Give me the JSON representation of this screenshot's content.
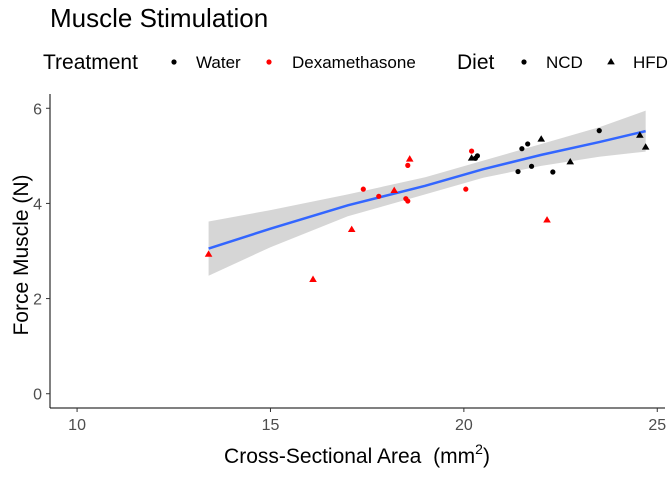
{
  "chart_data": {
    "type": "scatter",
    "title": "Muscle Stimulation",
    "xlabel": "Cross-Sectional Area",
    "xlabel_unit": "mm",
    "xlabel_unit_exponent": "2",
    "ylabel": "Force Muscle (N)",
    "xlim": [
      9.3,
      25.2
    ],
    "ylim": [
      -0.3,
      6.3
    ],
    "x_ticks": [
      10,
      15,
      20,
      25
    ],
    "y_ticks": [
      0,
      2,
      4,
      6
    ],
    "grid": false,
    "legend_position": "top",
    "legends": [
      {
        "title": "Treatment",
        "entries": [
          {
            "label": "Water",
            "color": "#000000",
            "shape": "circle"
          },
          {
            "label": "Dexamethasone",
            "color": "#ff0000",
            "shape": "circle"
          }
        ]
      },
      {
        "title": "Diet",
        "entries": [
          {
            "label": "NCD",
            "color": "#000000",
            "shape": "circle"
          },
          {
            "label": "HFD",
            "color": "#000000",
            "shape": "triangle"
          }
        ]
      }
    ],
    "colors": {
      "Water": "#000000",
      "Dexamethasone": "#ff0000",
      "fit_line": "#3366ff",
      "confidence_band": "#cccccc"
    },
    "points": [
      {
        "x": 13.4,
        "y": 2.93,
        "treatment": "Dexamethasone",
        "diet": "HFD"
      },
      {
        "x": 16.1,
        "y": 2.4,
        "treatment": "Dexamethasone",
        "diet": "HFD"
      },
      {
        "x": 17.1,
        "y": 3.45,
        "treatment": "Dexamethasone",
        "diet": "HFD"
      },
      {
        "x": 17.4,
        "y": 4.3,
        "treatment": "Dexamethasone",
        "diet": "NCD"
      },
      {
        "x": 17.8,
        "y": 4.15,
        "treatment": "Dexamethasone",
        "diet": "NCD"
      },
      {
        "x": 18.2,
        "y": 4.27,
        "treatment": "Dexamethasone",
        "diet": "HFD"
      },
      {
        "x": 18.5,
        "y": 4.1,
        "treatment": "Dexamethasone",
        "diet": "NCD"
      },
      {
        "x": 18.55,
        "y": 4.05,
        "treatment": "Dexamethasone",
        "diet": "NCD"
      },
      {
        "x": 18.55,
        "y": 4.8,
        "treatment": "Dexamethasone",
        "diet": "NCD"
      },
      {
        "x": 18.6,
        "y": 4.93,
        "treatment": "Dexamethasone",
        "diet": "HFD"
      },
      {
        "x": 20.05,
        "y": 4.3,
        "treatment": "Dexamethasone",
        "diet": "NCD"
      },
      {
        "x": 20.2,
        "y": 5.1,
        "treatment": "Dexamethasone",
        "diet": "NCD"
      },
      {
        "x": 22.15,
        "y": 3.65,
        "treatment": "Dexamethasone",
        "diet": "HFD"
      },
      {
        "x": 20.2,
        "y": 4.95,
        "treatment": "Water",
        "diet": "HFD"
      },
      {
        "x": 20.3,
        "y": 4.95,
        "treatment": "Water",
        "diet": "NCD"
      },
      {
        "x": 20.35,
        "y": 5.0,
        "treatment": "Water",
        "diet": "NCD"
      },
      {
        "x": 21.4,
        "y": 4.67,
        "treatment": "Water",
        "diet": "NCD"
      },
      {
        "x": 21.5,
        "y": 5.15,
        "treatment": "Water",
        "diet": "NCD"
      },
      {
        "x": 21.65,
        "y": 5.25,
        "treatment": "Water",
        "diet": "NCD"
      },
      {
        "x": 21.75,
        "y": 4.78,
        "treatment": "Water",
        "diet": "NCD"
      },
      {
        "x": 22.0,
        "y": 5.35,
        "treatment": "Water",
        "diet": "HFD"
      },
      {
        "x": 22.3,
        "y": 4.66,
        "treatment": "Water",
        "diet": "NCD"
      },
      {
        "x": 22.75,
        "y": 4.87,
        "treatment": "Water",
        "diet": "HFD"
      },
      {
        "x": 23.5,
        "y": 5.53,
        "treatment": "Water",
        "diet": "NCD"
      },
      {
        "x": 24.55,
        "y": 5.43,
        "treatment": "Water",
        "diet": "HFD"
      },
      {
        "x": 24.7,
        "y": 5.18,
        "treatment": "Water",
        "diet": "HFD"
      }
    ],
    "fit": {
      "method": "linear",
      "x": [
        13.4,
        15.0,
        17.0,
        19.0,
        20.5,
        22.0,
        23.5,
        24.7
      ],
      "y": [
        3.05,
        3.47,
        3.96,
        4.37,
        4.72,
        5.02,
        5.29,
        5.52
      ],
      "ci_lower": [
        2.48,
        3.08,
        3.73,
        4.19,
        4.54,
        4.79,
        4.98,
        5.09
      ],
      "ci_upper": [
        3.62,
        3.86,
        4.19,
        4.55,
        4.9,
        5.25,
        5.6,
        5.95
      ]
    }
  }
}
